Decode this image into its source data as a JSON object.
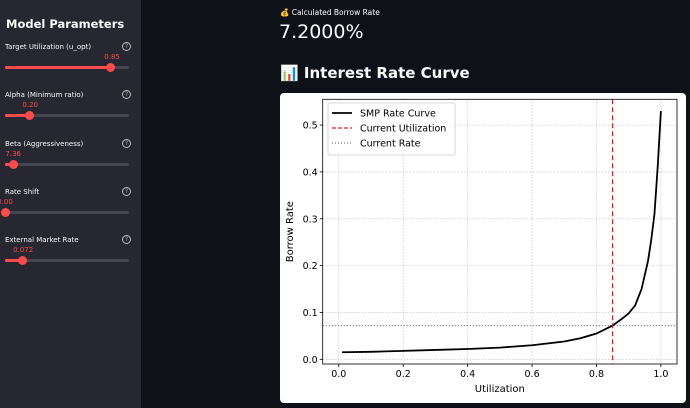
{
  "sidebar": {
    "title": "Model Parameters",
    "params": [
      {
        "label": "Target Utilization (u_opt)",
        "value": "0.85",
        "fraction": 0.85
      },
      {
        "label": "Alpha (Minimum ratio)",
        "value": "0.20",
        "fraction": 0.2
      },
      {
        "label": "Beta (Aggressiveness)",
        "value": "7.36",
        "fraction": 0.065
      },
      {
        "label": "Rate Shift",
        "value": "0.00",
        "fraction": 0.0
      },
      {
        "label": "External Market Rate",
        "value": "0.072",
        "fraction": 0.144
      }
    ],
    "help_icon": "?"
  },
  "main": {
    "rate_label": "💰 Calculated Borrow Rate",
    "rate_value": "7.2000%",
    "curve_title": "📊 Interest Rate Curve"
  },
  "colors": {
    "accent": "#ff4b4b",
    "sidebar": "#262730",
    "background": "#0e1117"
  },
  "chart_data": {
    "type": "line",
    "xlabel": "Utilization",
    "ylabel": "Borrow Rate",
    "xlim": [
      -0.05,
      1.05
    ],
    "ylim": [
      -0.01,
      0.555
    ],
    "grid": true,
    "legend": "top-left",
    "xticks": [
      "0.0",
      "0.2",
      "0.4",
      "0.6",
      "0.8",
      "1.0"
    ],
    "yticks": [
      "0.0",
      "0.1",
      "0.2",
      "0.3",
      "0.4",
      "0.5"
    ],
    "series": [
      {
        "name": "SMP Rate Curve",
        "color": "#000000",
        "points": [
          [
            0.01,
            0.015
          ],
          [
            0.1,
            0.016
          ],
          [
            0.2,
            0.018
          ],
          [
            0.3,
            0.02
          ],
          [
            0.4,
            0.022
          ],
          [
            0.5,
            0.025
          ],
          [
            0.6,
            0.03
          ],
          [
            0.7,
            0.038
          ],
          [
            0.75,
            0.045
          ],
          [
            0.8,
            0.055
          ],
          [
            0.85,
            0.072
          ],
          [
            0.88,
            0.087
          ],
          [
            0.9,
            0.098
          ],
          [
            0.92,
            0.115
          ],
          [
            0.94,
            0.15
          ],
          [
            0.96,
            0.21
          ],
          [
            0.97,
            0.255
          ],
          [
            0.98,
            0.31
          ],
          [
            0.99,
            0.41
          ],
          [
            1.0,
            0.53
          ]
        ]
      }
    ],
    "vline": {
      "name": "Current Utilization",
      "x": 0.85,
      "color": "#d62728"
    },
    "hline": {
      "name": "Current Rate",
      "y": 0.072,
      "color": "#555555"
    }
  }
}
